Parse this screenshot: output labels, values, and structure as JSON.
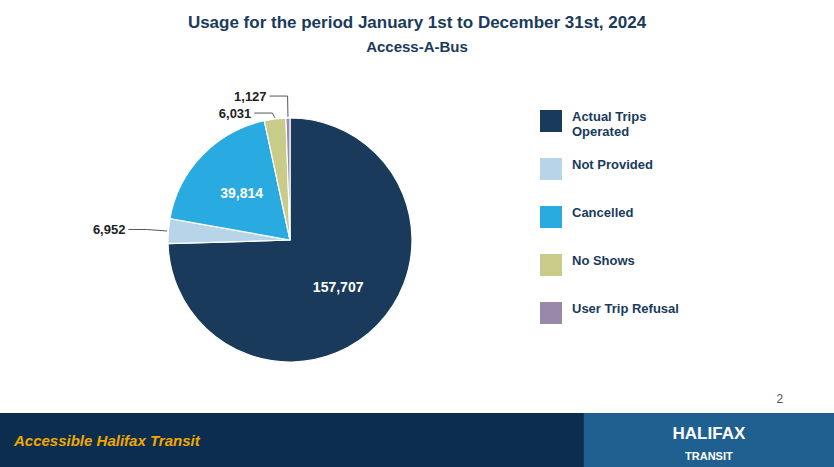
{
  "chart_data": {
    "type": "pie",
    "title": "Usage for the period January 1st to December 31st, 2024",
    "subtitle": "Access-A-Bus",
    "categories": [
      "Actual Trips\nOperated",
      "Not Provided",
      "Cancelled",
      "No Shows",
      "User Trip Refusal"
    ],
    "values": [
      157707,
      6952,
      39814,
      6031,
      1127
    ],
    "value_labels": [
      "157,707",
      "6,952",
      "39,814",
      "6,031",
      "1,127"
    ],
    "colors": [
      "#1a3a5c",
      "#b8d4e8",
      "#29aae1",
      "#c8cc88",
      "#9988aa"
    ],
    "data_labels": true,
    "legend": "right",
    "annotations": [
      "Accessible Halifax Transit",
      "HALIFAX",
      "TRANSIT",
      "2"
    ]
  }
}
